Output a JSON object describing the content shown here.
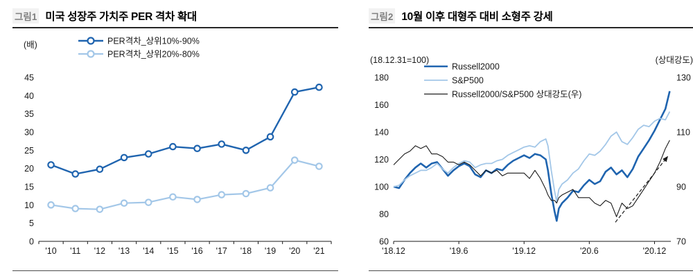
{
  "panels": [
    {
      "tag": "그림1",
      "title": "미국 성장주 가치주 PER 격차 확대"
    },
    {
      "tag": "그림2",
      "title": "10월 이후 대형주 대비 소형주 강세"
    }
  ],
  "colors": {
    "dark_blue": "#1f64af",
    "light_blue": "#a3c7e8",
    "black": "#1a1a1a",
    "axis": "#1a1a1a"
  },
  "chart_data": [
    {
      "type": "line",
      "title": "미국 성장주 가치주 PER 격차 확대",
      "unit_left": "(배)",
      "categories": [
        "'10",
        "'11",
        "'12",
        "'13",
        "'14",
        "'15",
        "'16",
        "'17",
        "'18",
        "'19",
        "'20",
        "'21"
      ],
      "ylim": [
        0,
        45
      ],
      "ytick_step": 5,
      "grid": false,
      "legend_position": "top",
      "series": [
        {
          "name": "PER격차_상위10%-90%",
          "color": "#1f64af",
          "marker": "circle",
          "line_width": 2.4,
          "values": [
            21,
            18.5,
            19.8,
            23,
            24,
            26,
            25.5,
            26.7,
            25,
            28.7,
            41,
            42.3
          ]
        },
        {
          "name": "PER격차_상위20%-80%",
          "color": "#a3c7e8",
          "marker": "circle",
          "line_width": 2.2,
          "values": [
            10,
            9,
            8.8,
            10.5,
            10.7,
            12.2,
            11.5,
            12.8,
            13.1,
            14.7,
            22.3,
            20.6
          ]
        }
      ]
    },
    {
      "type": "line",
      "title": "10월 이후 대형주 대비 소형주 강세",
      "unit_left": "(18.12.31=100)",
      "unit_right": "(상대강도)",
      "xlim": [
        0,
        25.5
      ],
      "x_ticks": [
        {
          "pos": 0,
          "label": "'18.12"
        },
        {
          "pos": 6,
          "label": "'19.6"
        },
        {
          "pos": 12,
          "label": "'19.12"
        },
        {
          "pos": 18,
          "label": "'20.6"
        },
        {
          "pos": 24,
          "label": "'20.12"
        }
      ],
      "ylim_left": [
        60,
        180
      ],
      "ytick_step_left": 20,
      "ylim_right": [
        70,
        130
      ],
      "ytick_step_right": 20,
      "x": [
        0,
        0.5,
        1,
        1.5,
        2,
        2.5,
        3,
        3.5,
        4,
        4.5,
        5,
        5.5,
        6,
        6.5,
        7,
        7.5,
        8,
        8.5,
        9,
        9.5,
        10,
        10.5,
        11,
        11.5,
        12,
        12.5,
        13,
        13.5,
        14,
        14.2,
        14.5,
        14.8,
        15,
        15.2,
        15.5,
        16,
        16.5,
        17,
        17.5,
        18,
        18.5,
        19,
        19.5,
        20,
        20.5,
        21,
        21.5,
        22,
        22.5,
        23,
        23.5,
        24,
        24.5,
        25,
        25.4
      ],
      "series": [
        {
          "name": "Russell2000",
          "color": "#1f64af",
          "axis": "left",
          "line_width": 2.6,
          "values": [
            100,
            99,
            105,
            110,
            114,
            117,
            114,
            117,
            118,
            113,
            108,
            112,
            115,
            117,
            115,
            109,
            107,
            112,
            110,
            113,
            112,
            116,
            119,
            121,
            123,
            121,
            124,
            123,
            120,
            112,
            95,
            82,
            75,
            84,
            88,
            92,
            97,
            96,
            101,
            105,
            102,
            104,
            111,
            114,
            109,
            112,
            107,
            113,
            122,
            128,
            134,
            141,
            149,
            157,
            170
          ]
        },
        {
          "name": "S&P500",
          "color": "#a3c7e8",
          "axis": "left",
          "line_width": 1.8,
          "values": [
            100,
            101,
            105,
            108,
            110,
            112,
            112,
            114,
            117,
            113,
            110,
            114,
            117,
            119,
            118,
            114,
            116,
            117,
            117,
            119,
            120,
            123,
            125,
            127,
            129,
            130,
            129,
            133,
            135,
            130,
            112,
            97,
            89,
            98,
            102,
            105,
            110,
            113,
            119,
            124,
            123,
            126,
            131,
            137,
            140,
            133,
            131,
            136,
            142,
            145,
            144,
            148,
            150,
            149,
            155
          ]
        },
        {
          "name": "Russell2000/S&P500 상대강도(우)",
          "color": "#1a1a1a",
          "axis": "right",
          "line_width": 1.1,
          "values": [
            98,
            100,
            102,
            103,
            105,
            104,
            105,
            102,
            102,
            101,
            99,
            99,
            98,
            99,
            98,
            96,
            94,
            96,
            95,
            96,
            94,
            95,
            95,
            95,
            95,
            93,
            96,
            93,
            89,
            87,
            85,
            85,
            84,
            86,
            87,
            88,
            89,
            86,
            86,
            86,
            84,
            83,
            85,
            84,
            79,
            84,
            82,
            83,
            86,
            89,
            92,
            95,
            99,
            104,
            107
          ]
        }
      ],
      "annotations": [
        {
          "type": "dashed_arrow",
          "axis": "right",
          "from": [
            20.4,
            77
          ],
          "to": [
            25.2,
            101
          ]
        }
      ]
    }
  ]
}
